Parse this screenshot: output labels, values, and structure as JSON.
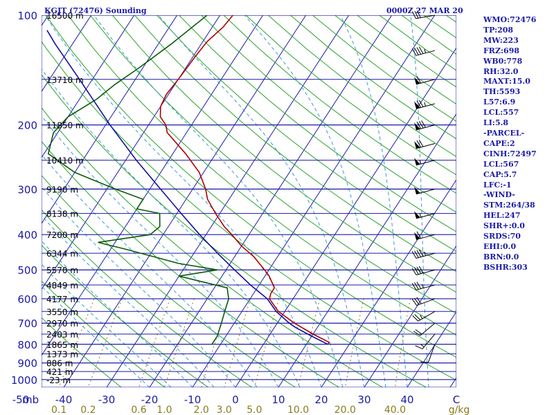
{
  "title_left": "KGJT (72476) Sounding",
  "title_right": "0000Z 27 MAR 20",
  "stats": [
    "WMO:72476",
    "TP:208",
    "MW:223",
    "FRZ:698",
    "WB0:778",
    "RH:32.0",
    "MAXT:15.0",
    "TH:5593",
    "L57:6.9",
    "LCL:557",
    "LI:5.8",
    "-PARCEL-",
    "CAPE:2",
    "CINH:72497",
    "LCL:567",
    "CAP:5.7",
    "LFC:-1",
    "-WIND-",
    "STM:264/38",
    "HEL:247",
    "SHR+:0.0",
    "SRDS:70",
    "EHI:0.0",
    "BRN:0.0",
    "BSHR:303"
  ],
  "colors": {
    "isobar": "#1a1aa8",
    "isotherm": "#1a1aa8",
    "dry_adiabat": "#2aa22a",
    "moist_adiabat": "#3a9ad0",
    "mixing_ratio": "#8a7a1e",
    "temperature": "#b00000",
    "dewpoint": "#0a5a0a",
    "parcel": "#1010a0",
    "wind": "#000000"
  },
  "chart_data": {
    "type": "skew-t",
    "pressure_labels": [
      "100",
      "200",
      "300",
      "400",
      "500",
      "600",
      "700",
      "800",
      "900",
      "1000"
    ],
    "pressure_axis_label": "mb",
    "temperature_ticks": [
      -50,
      -40,
      -30,
      -20,
      -10,
      0,
      10,
      20,
      30,
      40
    ],
    "temperature_tick_labels": [
      "-50",
      "-40",
      "-30",
      "-20",
      "-10",
      "0",
      "10",
      "20",
      "30",
      "40"
    ],
    "temperature_unit": "C",
    "mixing_ratio_ticks": [
      0.1,
      0.2,
      0.6,
      1.0,
      2.0,
      3.0,
      5.0,
      10.0,
      20.0,
      40.0
    ],
    "mixing_ratio_tick_labels": [
      "0.1",
      "0.2",
      "0.6",
      "1.0",
      "2.0",
      "3.0",
      "5.0",
      "10.0",
      "20.0",
      "40.0"
    ],
    "mixing_ratio_unit": "g/kg",
    "height_levels": [
      {
        "p": 100,
        "label": "16500 m"
      },
      {
        "p": 150,
        "label": "13710 m"
      },
      {
        "p": 200,
        "label": "11850 m"
      },
      {
        "p": 250,
        "label": "10410 m"
      },
      {
        "p": 300,
        "label": "9190 m"
      },
      {
        "p": 350,
        "label": "8138 m"
      },
      {
        "p": 400,
        "label": "7200 m"
      },
      {
        "p": 450,
        "label": "6344 m"
      },
      {
        "p": 500,
        "label": "5570 m"
      },
      {
        "p": 550,
        "label": "4849 m"
      },
      {
        "p": 600,
        "label": "4177 m"
      },
      {
        "p": 650,
        "label": "3550 m"
      },
      {
        "p": 700,
        "label": "2970 m"
      },
      {
        "p": 750,
        "label": "2403 m"
      },
      {
        "p": 800,
        "label": "1865 m"
      },
      {
        "p": 850,
        "label": "1373 m"
      },
      {
        "p": 900,
        "label": "886 m"
      },
      {
        "p": 950,
        "label": "421 m"
      },
      {
        "p": 1000,
        "label": "-23 m"
      }
    ],
    "series": [
      {
        "key": "temperature",
        "points": [
          [
            100,
            -57
          ],
          [
            108,
            -57.5
          ],
          [
            118,
            -59
          ],
          [
            130,
            -59.5
          ],
          [
            150,
            -60
          ],
          [
            165,
            -60.5
          ],
          [
            178,
            -60
          ],
          [
            190,
            -58.5
          ],
          [
            200,
            -56
          ],
          [
            210,
            -54.5
          ],
          [
            240,
            -47
          ],
          [
            270,
            -41
          ],
          [
            300,
            -37
          ],
          [
            320,
            -35
          ],
          [
            350,
            -31
          ],
          [
            380,
            -27
          ],
          [
            400,
            -24
          ],
          [
            430,
            -20
          ],
          [
            460,
            -15.5
          ],
          [
            500,
            -11
          ],
          [
            520,
            -9
          ],
          [
            560,
            -6
          ],
          [
            580,
            -6
          ],
          [
            600,
            -5.5
          ],
          [
            650,
            -1.5
          ],
          [
            700,
            4
          ],
          [
            750,
            10
          ],
          [
            790,
            15
          ],
          [
            800,
            15
          ]
        ]
      },
      {
        "key": "dewpoint",
        "points": [
          [
            100,
            -63
          ],
          [
            120,
            -67
          ],
          [
            140,
            -71
          ],
          [
            155,
            -74
          ],
          [
            170,
            -76
          ],
          [
            190,
            -80
          ],
          [
            210,
            -81
          ],
          [
            240,
            -79
          ],
          [
            270,
            -70
          ],
          [
            300,
            -58
          ],
          [
            320,
            -50
          ],
          [
            340,
            -50
          ],
          [
            350,
            -44
          ],
          [
            380,
            -42
          ],
          [
            400,
            -43
          ],
          [
            420,
            -54
          ],
          [
            440,
            -46
          ],
          [
            480,
            -32
          ],
          [
            500,
            -22
          ],
          [
            520,
            -30
          ],
          [
            560,
            -17
          ],
          [
            580,
            -16
          ],
          [
            600,
            -15
          ],
          [
            650,
            -14
          ],
          [
            700,
            -13
          ],
          [
            760,
            -12
          ],
          [
            800,
            -12
          ]
        ]
      },
      {
        "key": "parcel",
        "points": [
          [
            800,
            15
          ],
          [
            760,
            10
          ],
          [
            720,
            5
          ],
          [
            700,
            2.8
          ],
          [
            650,
            -2
          ],
          [
            600,
            -6
          ],
          [
            550,
            -12
          ],
          [
            500,
            -18
          ],
          [
            450,
            -24.5
          ],
          [
            400,
            -31.5
          ],
          [
            350,
            -39
          ],
          [
            300,
            -47.5
          ],
          [
            250,
            -57.5
          ],
          [
            200,
            -69
          ],
          [
            150,
            -83
          ],
          [
            120,
            -94
          ],
          [
            110,
            -98
          ]
        ]
      }
    ],
    "winds": [
      {
        "p": 100,
        "dir": 260,
        "spd": 30
      },
      {
        "p": 125,
        "dir": 255,
        "spd": 45
      },
      {
        "p": 150,
        "dir": 255,
        "spd": 60
      },
      {
        "p": 175,
        "dir": 255,
        "spd": 75
      },
      {
        "p": 200,
        "dir": 255,
        "spd": 80
      },
      {
        "p": 225,
        "dir": 255,
        "spd": 70
      },
      {
        "p": 250,
        "dir": 255,
        "spd": 55
      },
      {
        "p": 300,
        "dir": 255,
        "spd": 50
      },
      {
        "p": 350,
        "dir": 255,
        "spd": 55
      },
      {
        "p": 400,
        "dir": 255,
        "spd": 60
      },
      {
        "p": 450,
        "dir": 255,
        "spd": 45
      },
      {
        "p": 500,
        "dir": 255,
        "spd": 40
      },
      {
        "p": 550,
        "dir": 255,
        "spd": 35
      },
      {
        "p": 600,
        "dir": 250,
        "spd": 30
      },
      {
        "p": 650,
        "dir": 240,
        "spd": 25
      },
      {
        "p": 700,
        "dir": 230,
        "spd": 20
      },
      {
        "p": 750,
        "dir": 220,
        "spd": 15
      },
      {
        "p": 800,
        "dir": 200,
        "spd": 10
      }
    ]
  }
}
